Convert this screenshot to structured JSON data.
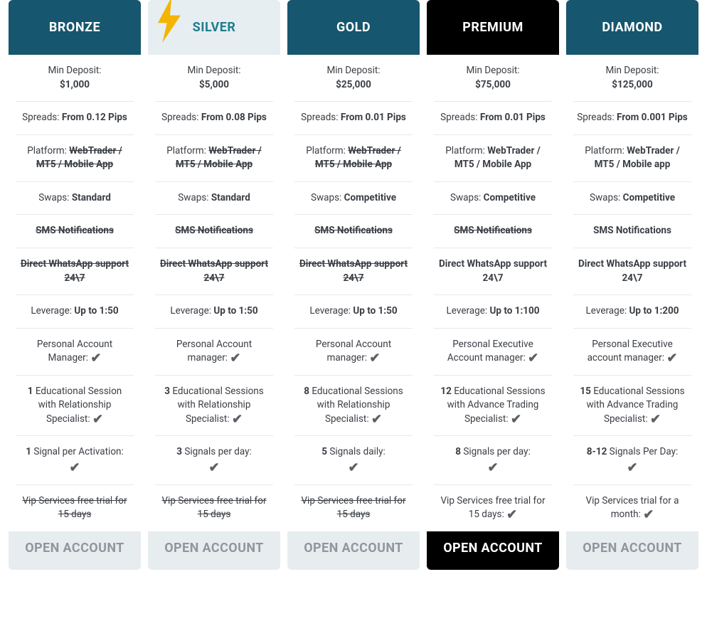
{
  "labels": {
    "minDeposit": "Min Deposit:",
    "spreads": "Spreads:",
    "platform": "Platform:",
    "swaps": "Swaps:",
    "sms": "SMS Notifications",
    "whatsapp": "Direct WhatsApp support 24\\7",
    "leverage": "Leverage:",
    "cta": "OPEN ACCOUNT"
  },
  "colors": {
    "divider": "#e6e8ea",
    "textBody": "#3a3e44",
    "check": "#5b5f66"
  },
  "bolt": {
    "fill": "#f4b400"
  },
  "tiers": [
    {
      "key": "bronze",
      "name": "BRONZE",
      "headBg": "#16566e",
      "headText": "#ffffff",
      "footBg": "#e7ecef",
      "footText": "#8f979d",
      "hasBolt": false,
      "deposit": "$1,000",
      "spreads": "From 0.12 Pips",
      "platform": "WebTrader / MT5 / Mobile App",
      "platformStrike": true,
      "swaps": "Standard",
      "smsStrike": true,
      "whatsappStrike": true,
      "leverage": "Up to 1:50",
      "managerLabel": "Personal Account Manager:",
      "managerCheck": true,
      "sessionsCount": "1",
      "sessionsLabel": "Educational Session with Relationship Specialist:",
      "sessionsCheck": true,
      "signalsCount": "1",
      "signalsLabel": "Signal per Activation:",
      "signalsCheck": true,
      "signalsCheckBelow": true,
      "vip": "Vip Services free trial for 15 days",
      "vipStrike": true,
      "vipCheck": false
    },
    {
      "key": "silver",
      "name": "SILVER",
      "headBg": "#e6eef2",
      "headText": "#1f7c8c",
      "footBg": "#e7ecef",
      "footText": "#8f979d",
      "hasBolt": true,
      "deposit": "$5,000",
      "spreads": "From 0.08 Pips",
      "platform": "WebTrader / MT5 / Mobile App",
      "platformStrike": true,
      "swaps": "Standard",
      "smsStrike": true,
      "whatsappStrike": true,
      "leverage": "Up to 1:50",
      "managerLabel": "Personal Account manager:",
      "managerCheck": true,
      "sessionsCount": "3",
      "sessionsLabel": "Educational Sessions with Relationship Specialist:",
      "sessionsCheck": true,
      "signalsCount": "3",
      "signalsLabel": "Signals per day:",
      "signalsCheck": true,
      "signalsCheckBelow": true,
      "vip": "Vip Services free trial for 15 days",
      "vipStrike": true,
      "vipCheck": false
    },
    {
      "key": "gold",
      "name": "GOLD",
      "headBg": "#16566e",
      "headText": "#ffffff",
      "footBg": "#e7ecef",
      "footText": "#8f979d",
      "hasBolt": false,
      "deposit": "$25,000",
      "spreads": "From 0.01 Pips",
      "platform": "WebTrader / MT5 / Mobile App",
      "platformStrike": true,
      "swaps": "Competitive",
      "smsStrike": true,
      "whatsappStrike": true,
      "leverage": "Up to 1:50",
      "managerLabel": "Personal Account manager:",
      "managerCheck": true,
      "sessionsCount": "8",
      "sessionsLabel": "Educational Sessions with Relationship Specialist:",
      "sessionsCheck": true,
      "signalsCount": "5",
      "signalsLabel": "Signals daily:",
      "signalsCheck": true,
      "signalsCheckBelow": true,
      "vip": "Vip Services free trial for 15 days",
      "vipStrike": true,
      "vipCheck": false
    },
    {
      "key": "premium",
      "name": "PREMIUM",
      "headBg": "#000000",
      "headText": "#ffffff",
      "footBg": "#000000",
      "footText": "#ffffff",
      "hasBolt": false,
      "deposit": "$75,000",
      "spreads": "From 0.01 Pips",
      "platform": "WebTrader / MT5 / Mobile App",
      "platformStrike": false,
      "swaps": "Competitive",
      "smsStrike": true,
      "whatsappStrike": false,
      "leverage": "Up to 1:100",
      "managerLabel": "Personal Executive Account manager:",
      "managerCheck": true,
      "sessionsCount": "12",
      "sessionsLabel": "Educational Sessions with Advance Trading Specialist:",
      "sessionsCheck": true,
      "signalsCount": "8",
      "signalsLabel": "Signals per day:",
      "signalsCheck": true,
      "signalsCheckBelow": true,
      "vip": "Vip Services free trial for 15 days:",
      "vipStrike": false,
      "vipCheck": true
    },
    {
      "key": "diamond",
      "name": "DIAMOND",
      "headBg": "#16566e",
      "headText": "#ffffff",
      "footBg": "#e7ecef",
      "footText": "#8f979d",
      "hasBolt": false,
      "deposit": "$125,000",
      "spreads": "From 0.001 Pips",
      "platform": "WebTrader / MT5 / Mobile app",
      "platformStrike": false,
      "swaps": "Competitive",
      "smsStrike": false,
      "whatsappStrike": false,
      "leverage": "Up to 1:200",
      "managerLabel": "Personal Executive account manager:",
      "managerCheck": true,
      "sessionsCount": "15",
      "sessionsLabel": "Educational Sessions with Advance Trading Specialist:",
      "sessionsCheck": true,
      "signalsCount": "8-12",
      "signalsLabel": "Signals Per Day:",
      "signalsCheck": true,
      "signalsCheckBelow": true,
      "vip": "Vip Services trial for a month:",
      "vipStrike": false,
      "vipCheck": true
    }
  ]
}
